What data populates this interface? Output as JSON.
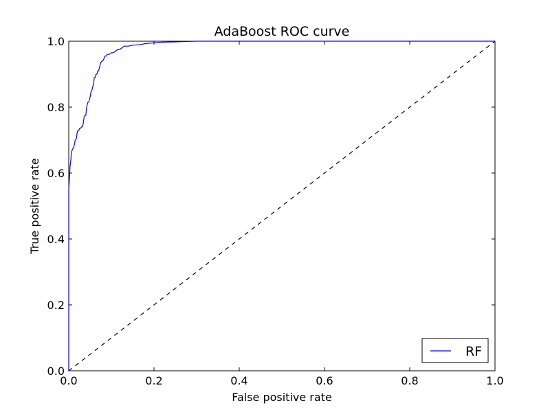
{
  "chart_data": {
    "type": "line",
    "title": "AdaBoost ROC curve",
    "xlabel": "False positive rate",
    "ylabel": "True positive rate",
    "xlim": [
      0.0,
      1.0
    ],
    "ylim": [
      0.0,
      1.0
    ],
    "xticks": [
      "0.0",
      "0.2",
      "0.4",
      "0.6",
      "0.8",
      "1.0"
    ],
    "yticks": [
      "0.0",
      "0.2",
      "0.4",
      "0.6",
      "0.8",
      "1.0"
    ],
    "grid": false,
    "legend_position": "lower-right",
    "series": [
      {
        "name": "RF",
        "color": "#0000ff",
        "style": "solid",
        "x": [
          0.0,
          0.0,
          0.002,
          0.003,
          0.004,
          0.005,
          0.006,
          0.008,
          0.01,
          0.012,
          0.014,
          0.015,
          0.018,
          0.02,
          0.022,
          0.024,
          0.025,
          0.027,
          0.03,
          0.032,
          0.034,
          0.036,
          0.038,
          0.04,
          0.042,
          0.045,
          0.047,
          0.05,
          0.052,
          0.054,
          0.056,
          0.058,
          0.06,
          0.062,
          0.064,
          0.066,
          0.068,
          0.07,
          0.072,
          0.075,
          0.078,
          0.08,
          0.082,
          0.085,
          0.088,
          0.09,
          0.092,
          0.095,
          0.1,
          0.105,
          0.11,
          0.115,
          0.12,
          0.125,
          0.13,
          0.14,
          0.15,
          0.17,
          0.18,
          0.2,
          0.22,
          0.25,
          0.27,
          0.3,
          0.4,
          0.5,
          0.6,
          0.7,
          0.8,
          0.9,
          1.0
        ],
        "y": [
          0.0,
          0.55,
          0.59,
          0.62,
          0.63,
          0.64,
          0.66,
          0.67,
          0.675,
          0.68,
          0.69,
          0.7,
          0.705,
          0.725,
          0.73,
          0.73,
          0.735,
          0.735,
          0.74,
          0.74,
          0.75,
          0.77,
          0.775,
          0.775,
          0.8,
          0.815,
          0.815,
          0.83,
          0.845,
          0.85,
          0.86,
          0.87,
          0.89,
          0.89,
          0.9,
          0.9,
          0.91,
          0.91,
          0.92,
          0.935,
          0.94,
          0.94,
          0.945,
          0.955,
          0.955,
          0.96,
          0.96,
          0.96,
          0.965,
          0.965,
          0.97,
          0.975,
          0.975,
          0.98,
          0.985,
          0.985,
          0.988,
          0.99,
          0.993,
          0.995,
          0.997,
          0.998,
          0.999,
          1.0,
          1.0,
          1.0,
          1.0,
          1.0,
          1.0,
          1.0,
          1.0
        ]
      },
      {
        "name": "",
        "color": "#000000",
        "style": "dashed",
        "x": [
          0.0,
          1.0
        ],
        "y": [
          0.0,
          1.0
        ]
      }
    ]
  }
}
